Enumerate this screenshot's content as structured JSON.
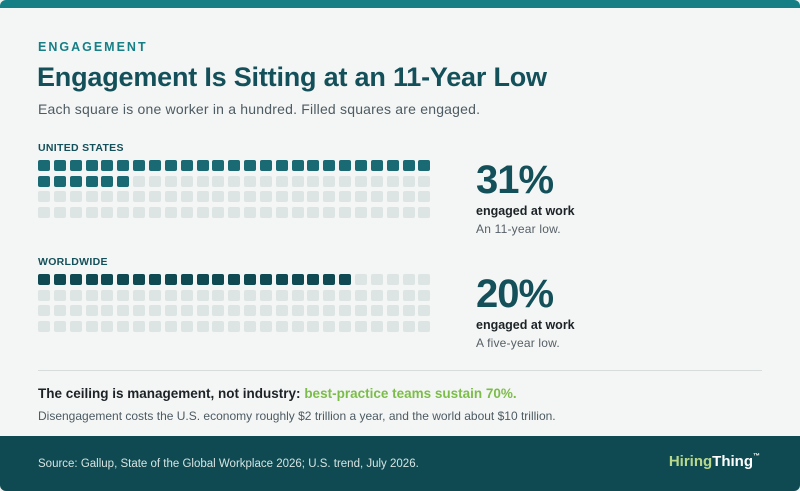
{
  "header": {
    "eyebrow": "ENGAGEMENT",
    "title": "Engagement Is Sitting at an 11-Year Low",
    "subtitle": "Each square is one worker in a hundred. Filled squares are engaged."
  },
  "chart_data": {
    "type": "waffle",
    "total_per_grid": 100,
    "grid_columns": 25,
    "grid_rows": 4,
    "colors": {
      "filled": "#1a6a73",
      "filled_worldwide": "#0f4a52",
      "empty": "#dde5e4"
    },
    "series": [
      {
        "name": "UNITED STATES",
        "value": 31,
        "display": "31%",
        "label": "engaged at work",
        "note": "An 11-year low."
      },
      {
        "name": "WORLDWIDE",
        "value": 20,
        "display": "20%",
        "label": "engaged at work",
        "note": "A five-year low."
      }
    ]
  },
  "callout": {
    "lead": "The ceiling is management, not industry:",
    "highlight": "best-practice teams sustain 70%.",
    "note": "Disengagement costs the U.S. economy roughly $2 trillion a year, and the world about $10 trillion."
  },
  "footer": {
    "source": "Source: Gallup, State of the Global Workplace 2026; U.S. trend, July 2026.",
    "brand_a": "Hiring",
    "brand_b": "Thing",
    "brand_tm": "™"
  }
}
